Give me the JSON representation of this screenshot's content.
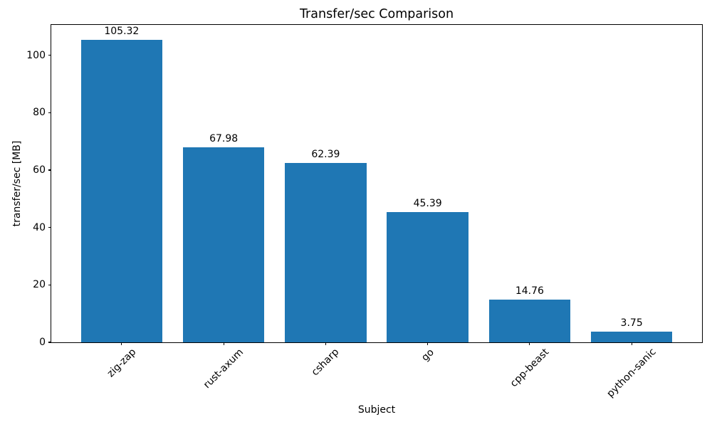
{
  "chart_data": {
    "type": "bar",
    "title": "Transfer/sec Comparison",
    "xlabel": "Subject",
    "ylabel": "transfer/sec [MB]",
    "categories": [
      "zig-zap",
      "rust-axum",
      "csharp",
      "go",
      "cpp-beast",
      "python-sanic"
    ],
    "values": [
      105.32,
      67.98,
      62.39,
      45.39,
      14.76,
      3.75
    ],
    "value_labels": [
      "105.32",
      "67.98",
      "62.39",
      "45.39",
      "14.76",
      "3.75"
    ],
    "bar_color": "#1f77b4",
    "axis_color": "#000000",
    "text_color": "#000000",
    "background_color": "#ffffff",
    "ylim": [
      0,
      110.6
    ],
    "yticks": [
      0,
      20,
      40,
      60,
      80,
      100
    ],
    "x_tick_rotation_deg": 45,
    "grid": false,
    "legend": null
  }
}
